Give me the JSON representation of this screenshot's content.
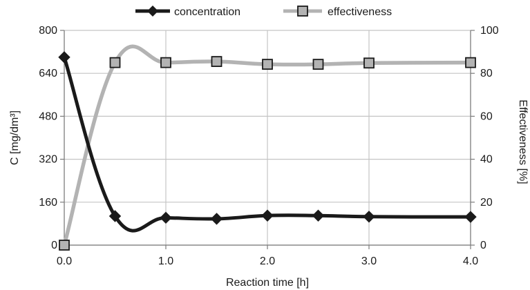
{
  "chart_data": {
    "type": "line",
    "x": [
      0.0,
      0.5,
      1.0,
      1.5,
      2.0,
      2.5,
      3.0,
      4.0
    ],
    "series": [
      {
        "name": "concentration",
        "axis": "left",
        "color": "#1a1a1a",
        "marker": "diamond",
        "values": [
          700,
          108,
          102,
          98,
          110,
          110,
          106,
          105
        ]
      },
      {
        "name": "effectiveness",
        "axis": "right",
        "color": "#b3b3b3",
        "marker": "square",
        "values": [
          0,
          85,
          85,
          85.5,
          84.2,
          84.2,
          84.8,
          85
        ]
      }
    ],
    "xlabel": "Reaction time [h]",
    "ylabel_left": "C [mg/dm³]",
    "ylabel_right": "Effectiveness [%]",
    "xlim": [
      0,
      4
    ],
    "ylim_left": [
      0,
      800
    ],
    "ylim_right": [
      0,
      100
    ],
    "xticks": [
      "0.0",
      "1.0",
      "2.0",
      "3.0",
      "4.0"
    ],
    "yticks_left": [
      "0",
      "160",
      "320",
      "480",
      "640",
      "800"
    ],
    "yticks_right": [
      "0",
      "20",
      "40",
      "60",
      "80",
      "100"
    ],
    "grid": true,
    "legend_position": "top-center"
  }
}
